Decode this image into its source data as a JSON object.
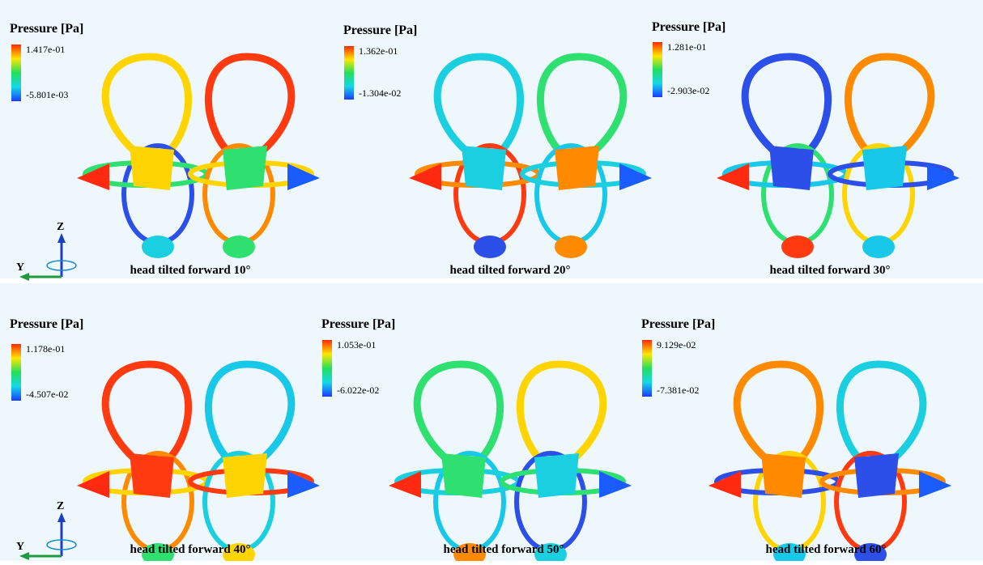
{
  "panels": [
    {
      "legend_title": "Pressure [Pa]",
      "max": "1.417e-01",
      "min": "-5.801e-03",
      "caption": "head tilted forward 10°"
    },
    {
      "legend_title": "Pressure [Pa]",
      "max": "1.362e-01",
      "min": "-1.304e-02",
      "caption": "head tilted forward 20°"
    },
    {
      "legend_title": "Pressure [Pa]",
      "max": "1.281e-01",
      "min": "-2.903e-02",
      "caption": "head tilted forward 30°"
    },
    {
      "legend_title": "Pressure [Pa]",
      "max": "1.178e-01",
      "min": "-4.507e-02",
      "caption": "head tilted forward 40°"
    },
    {
      "legend_title": "Pressure [Pa]",
      "max": "1.053e-01",
      "min": "-6.022e-02",
      "caption": "head tilted forward 50°"
    },
    {
      "legend_title": "Pressure [Pa]",
      "max": "9.129e-02",
      "min": "-7.381e-02",
      "caption": "head tilted forward 60°"
    }
  ],
  "axes": [
    {
      "z": "Z",
      "y": "Y"
    },
    {
      "z": "Z",
      "y": "Y"
    }
  ]
}
